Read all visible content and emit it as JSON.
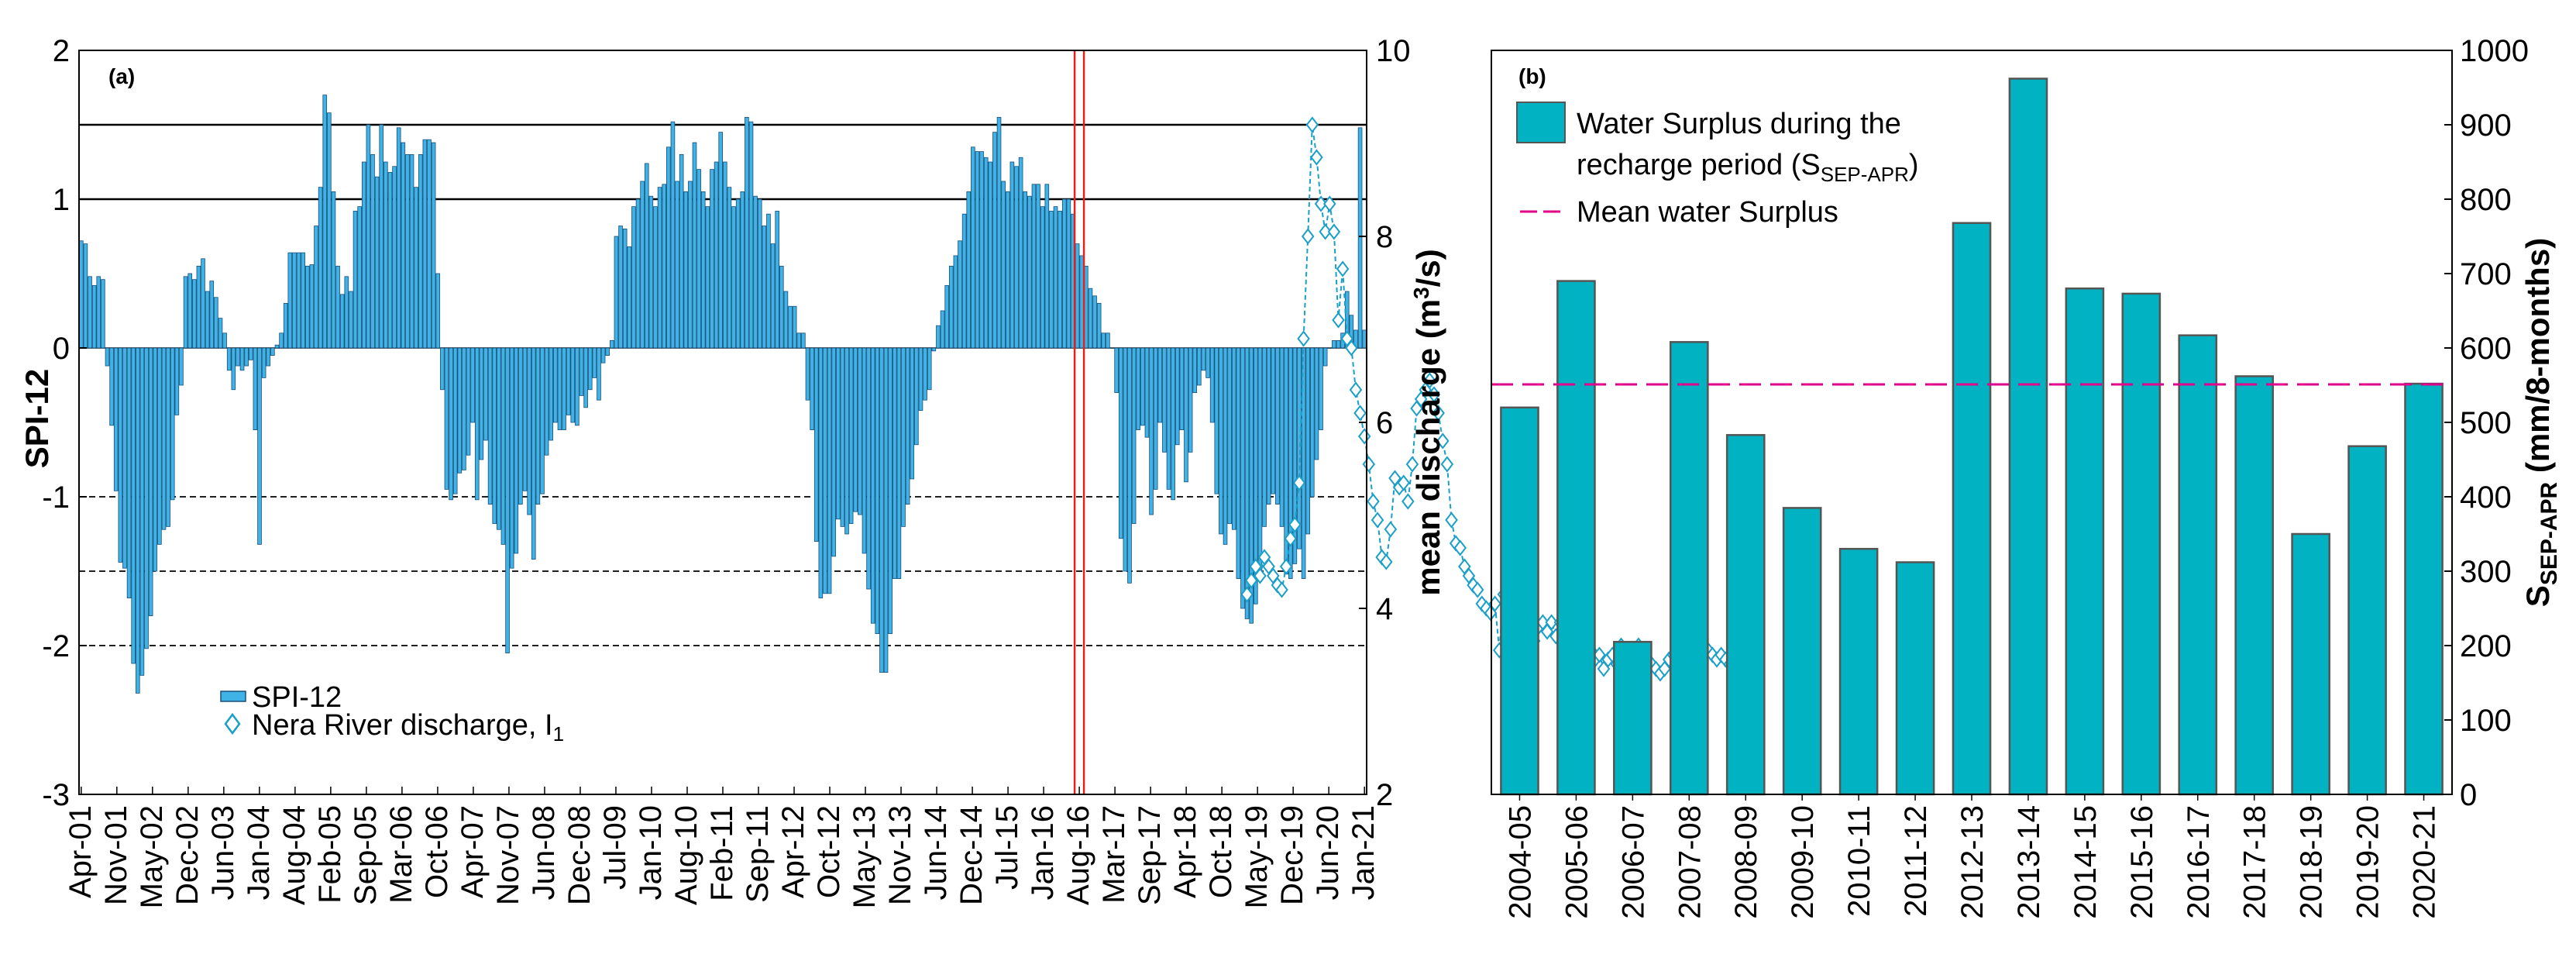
{
  "chart_data": [
    {
      "type": "bar",
      "panel_label": "(a)",
      "title": "",
      "ylabel": "SPI-12",
      "y2label": "mean discharge (m³/s)",
      "ylim": [
        -3,
        2
      ],
      "y2lim": [
        2,
        10
      ],
      "yticks": [
        "2",
        "1",
        "0",
        "-1",
        "-2",
        "-3"
      ],
      "y2ticks": [
        "10",
        "8",
        "6",
        "4",
        "2"
      ],
      "x_tick_labels": [
        "Apr-01",
        "Nov-01",
        "May-02",
        "Dec-02",
        "Jun-03",
        "Jan-04",
        "Aug-04",
        "Feb-05",
        "Sep-05",
        "Mar-06",
        "Oct-06",
        "Apr-07",
        "Nov-07",
        "Jun-08",
        "Dec-08",
        "Jul-09",
        "Jan-10",
        "Aug-10",
        "Feb-11",
        "Sep-11",
        "Apr-12",
        "Oct-12",
        "May-13",
        "Nov-13",
        "Jun-14",
        "Dec-14",
        "Jul-15",
        "Jan-16",
        "Aug-16",
        "Mar-17",
        "Sep-17",
        "Apr-18",
        "Oct-18",
        "May-19",
        "Dec-19",
        "Jun-20",
        "Jan-21"
      ],
      "reference_lines": [
        1.5,
        1.0,
        -1.0,
        -1.5,
        -2.0
      ],
      "vertical_markers": [
        "Aug-16"
      ],
      "legend": [
        {
          "label": "SPI-12",
          "marker": "bar"
        },
        {
          "label": "Nera River discharge, I",
          "subscript": "1",
          "marker": "diamond"
        }
      ],
      "series": [
        {
          "name": "SPI-12",
          "start": "Apr-01",
          "values": [
            0.72,
            0.7,
            0.48,
            0.42,
            0.48,
            0.46,
            -0.12,
            -0.52,
            -0.96,
            -1.44,
            -1.48,
            -1.68,
            -2.12,
            -2.32,
            -2.2,
            -2.02,
            -1.8,
            -1.5,
            -1.32,
            -1.22,
            -1.2,
            -1.02,
            -0.45,
            -0.25,
            0.48,
            0.5,
            0.46,
            0.55,
            0.6,
            0.38,
            0.45,
            0.34,
            0.2,
            0.1,
            -0.15,
            -0.28,
            -0.12,
            -0.15,
            -0.12,
            -0.08,
            -0.55,
            -1.32,
            -0.2,
            -0.12,
            -0.05,
            0.02,
            0.1,
            0.3,
            0.64,
            0.64,
            0.64,
            0.64,
            0.55,
            0.56,
            0.82,
            1.08,
            1.7,
            1.58,
            1.05,
            0.55,
            0.36,
            0.48,
            0.38,
            0.92,
            0.95,
            1.25,
            1.5,
            1.3,
            1.15,
            1.5,
            1.25,
            1.18,
            1.22,
            1.48,
            1.38,
            1.3,
            1.3,
            1.08,
            1.3,
            1.4,
            1.4,
            1.38,
            0.5,
            -0.28,
            -0.95,
            -1.02,
            -0.98,
            -0.84,
            -0.82,
            -0.72,
            -0.5,
            -1.02,
            -0.75,
            -0.62,
            -1.05,
            -1.18,
            -1.22,
            -1.32,
            -2.05,
            -1.48,
            -1.38,
            -1.05,
            -0.96,
            -1.12,
            -1.42,
            -1.05,
            -0.98,
            -0.72,
            -0.62,
            -0.5,
            -0.55,
            -0.55,
            -0.45,
            -0.5,
            -0.52,
            -0.32,
            -0.4,
            -0.28,
            -0.2,
            -0.35,
            -0.1,
            -0.05,
            0.05,
            0.75,
            0.82,
            0.8,
            0.68,
            0.95,
            1.0,
            1.12,
            1.24,
            1.02,
            0.95,
            1.08,
            1.1,
            1.35,
            1.52,
            1.12,
            1.3,
            1.05,
            1.12,
            1.38,
            1.2,
            1.05,
            0.95,
            1.2,
            1.25,
            1.45,
            1.25,
            1.08,
            0.95,
            1.0,
            1.05,
            1.55,
            1.52,
            1.02,
            1.0,
            0.82,
            0.9,
            0.7,
            0.92,
            0.55,
            0.38,
            0.28,
            0.28,
            0.1,
            0.1,
            -0.35,
            -0.55,
            -1.3,
            -1.68,
            -1.65,
            -1.65,
            -1.4,
            -1.15,
            -1.2,
            -1.25,
            -1.18,
            -1.1,
            -1.12,
            -1.38,
            -1.62,
            -1.85,
            -1.92,
            -2.18,
            -2.18,
            -1.92,
            -1.55,
            -1.55,
            -1.2,
            -1.05,
            -0.88,
            -0.65,
            -0.42,
            -0.35,
            -0.28,
            -0.02,
            0.15,
            0.25,
            0.42,
            0.55,
            0.62,
            0.72,
            0.9,
            1.05,
            1.35,
            1.32,
            1.32,
            1.28,
            1.25,
            1.45,
            1.55,
            1.12,
            1.05,
            1.25,
            1.22,
            1.28,
            1.05,
            1.02,
            1.1,
            1.1,
            0.95,
            1.1,
            0.92,
            0.95,
            0.92,
            1.0,
            1.0,
            0.9,
            0.7,
            0.62,
            0.55,
            0.4,
            0.35,
            0.3,
            0.1,
            0.1,
            0.0,
            -0.3,
            -1.28,
            -1.5,
            -1.58,
            -1.18,
            -0.55,
            -0.52,
            -0.6,
            -1.12,
            -0.95,
            -0.5,
            -0.7,
            -0.95,
            -1.02,
            -0.65,
            -0.55,
            -0.9,
            -0.7,
            -0.3,
            -0.25,
            -0.15,
            -0.2,
            -0.5,
            -0.98,
            -1.25,
            -1.32,
            -1.18,
            -1.22,
            -1.55,
            -1.75,
            -1.82,
            -1.85,
            -1.72,
            -1.5,
            -1.2,
            -1.05,
            -0.98,
            -1.05,
            -1.2,
            -1.52,
            -1.55,
            -1.45,
            -1.35,
            -1.55,
            -1.25,
            -1.0,
            -0.75,
            -0.55,
            -0.12,
            0.0,
            0.05,
            0.05,
            0.1,
            0.38,
            0.22,
            0.12,
            1.48,
            0.12
          ]
        },
        {
          "name": "Nera River discharge",
          "x_positions": [
            268.5,
            269.5,
            270.5,
            271.5,
            272.5,
            273.5,
            274.5,
            275.5,
            276.5,
            277.5,
            278.5,
            279.5,
            280.5,
            281.5,
            282.5,
            283.5,
            284.5,
            285.5,
            286.5,
            287.5,
            288.5,
            289.5,
            290.5,
            291.5,
            292.5,
            293.5,
            294.5,
            295.5,
            296.5,
            297.5,
            298.5,
            299.5,
            300.5,
            301.5,
            302.5,
            303.5,
            304.5,
            305.5,
            306.5,
            307.5,
            308.5,
            309.5,
            310.5,
            311.5,
            312.5,
            313.5,
            314.5,
            315.5,
            316.5,
            317.5,
            318.5,
            319.5,
            320.5,
            321.5,
            322.5,
            323.5,
            324.5,
            325.5,
            326.5,
            327.5,
            328.5,
            329.5,
            330.5,
            331.5,
            332.5,
            333.5,
            334.5,
            335.5,
            336.5,
            337.5,
            338.5,
            339.5,
            340.5,
            341.5,
            342.5,
            343.5,
            344.5,
            345.5,
            346.5,
            347.5,
            348.5,
            349.5,
            350.5,
            351.5,
            352.5,
            353.5,
            354.5,
            355.5,
            356.5,
            357.5,
            358.5,
            359.5,
            360.5,
            361.5,
            362.5,
            363.5,
            364.5,
            365.5,
            366.5,
            367.5,
            368.5,
            369.5,
            370.5,
            371.5,
            372.5,
            373.5,
            374.5,
            375.5,
            376.5,
            377.5,
            378.5,
            379.5
          ],
          "values": [
            4.15,
            4.3,
            4.45,
            4.35,
            4.55,
            4.45,
            4.35,
            4.25,
            4.2,
            4.45,
            4.75,
            4.9,
            5.35,
            6.9,
            8.0,
            9.2,
            8.85,
            8.35,
            8.05,
            8.35,
            8.05,
            7.1,
            7.65,
            6.9,
            6.8,
            6.35,
            6.1,
            5.85,
            5.55,
            5.15,
            4.95,
            4.55,
            4.5,
            4.85,
            5.4,
            5.3,
            5.35,
            5.15,
            5.55,
            6.15,
            6.25,
            6.35,
            6.45,
            6.3,
            6.1,
            5.8,
            5.55,
            4.95,
            4.7,
            4.65,
            4.45,
            4.35,
            4.25,
            4.2,
            4.05,
            4.0,
            3.95,
            4.05,
            3.55,
            4.15,
            4.05,
            4.1,
            4.0,
            3.85,
            3.75,
            3.6,
            3.65,
            3.8,
            3.85,
            3.75,
            3.85,
            3.7,
            3.85,
            3.9,
            3.75,
            3.8,
            3.85,
            3.8,
            3.8,
            3.55,
            3.45,
            3.5,
            3.35,
            3.45,
            3.5,
            3.4,
            3.6,
            3.45,
            3.5,
            3.55,
            3.6,
            3.5,
            3.45,
            3.4,
            3.35,
            3.3,
            3.35,
            3.45,
            3.5,
            3.55,
            3.45,
            3.4,
            3.45,
            3.5,
            3.55,
            3.6,
            3.55,
            3.5,
            3.45,
            3.5,
            3.45,
            3.4
          ]
        }
      ]
    },
    {
      "type": "bar",
      "panel_label": "(b)",
      "title": "",
      "xlabel": "",
      "ylabel": "S",
      "ylabel_subscript": "SEP-APR",
      "ylabel_units": " (mm/8-months)",
      "ylim": [
        0,
        1000
      ],
      "yticks": [
        "1000",
        "900",
        "800",
        "700",
        "600",
        "500",
        "400",
        "300",
        "200",
        "100",
        "0"
      ],
      "categories": [
        "2004-05",
        "2005-06",
        "2006-07",
        "2007-08",
        "2008-09",
        "2009-10",
        "2010-11",
        "2011-12",
        "2012-13",
        "2013-14",
        "2014-15",
        "2015-16",
        "2016-17",
        "2017-18",
        "2018-19",
        "2019-20",
        "2020-21"
      ],
      "values": [
        520,
        690,
        205,
        608,
        483,
        385,
        330,
        312,
        768,
        962,
        680,
        673,
        617,
        562,
        350,
        468,
        552
      ],
      "mean_line": 551,
      "legend": [
        {
          "label_line1": "Water Surplus during the",
          "label_line2": "recharge period (S",
          "subscript": "SEP-APR",
          "label_end": ")",
          "marker": "bar"
        },
        {
          "label": "Mean water Surplus",
          "marker": "dashed"
        }
      ],
      "colors": {
        "bar": "#00b2c2",
        "bar_edge": "#555555",
        "mean": "#e0008a"
      }
    }
  ],
  "colors": {
    "spi_bar": "#3fb2e6",
    "spi_edge": "#1a4f7a",
    "discharge": "#1aa0c8",
    "marker_line": "#e8201c"
  }
}
